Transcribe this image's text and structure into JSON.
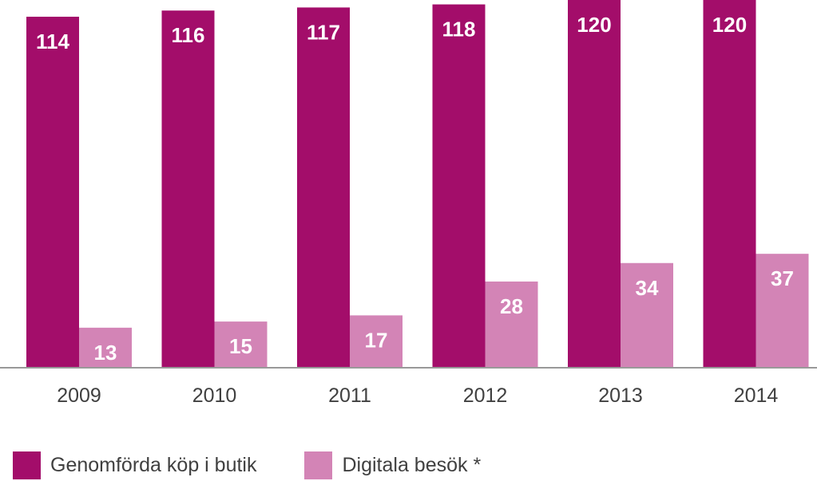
{
  "chart_data": {
    "type": "bar",
    "categories": [
      "2009",
      "2010",
      "2011",
      "2012",
      "2013",
      "2014"
    ],
    "series": [
      {
        "name": "Genomförda köp i butik",
        "values": [
          114,
          116,
          117,
          118,
          120,
          120
        ],
        "color": "#a30d6a"
      },
      {
        "name": "Digitala besök *",
        "values": [
          13,
          15,
          17,
          28,
          34,
          37
        ],
        "color": "#d384b6"
      }
    ],
    "value_labels": true,
    "grid": false,
    "legend_position": "bottom-left",
    "axis_color": "#999999",
    "tick_label_color": "#404040"
  }
}
